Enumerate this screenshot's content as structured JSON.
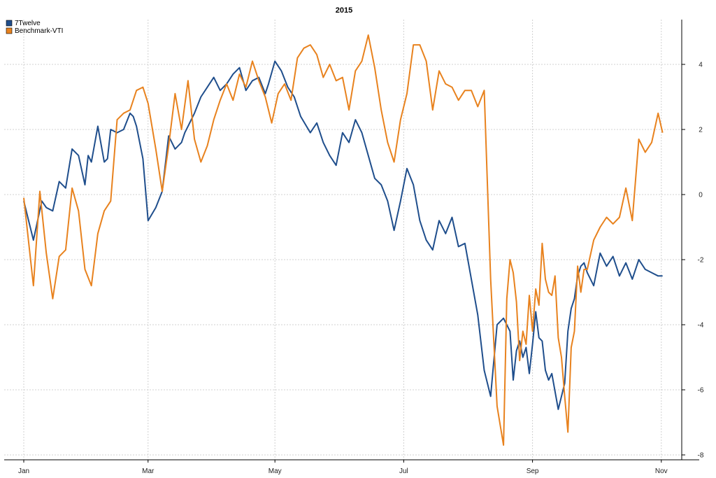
{
  "chart_data": {
    "type": "line",
    "title": "2015",
    "xlabel": "",
    "ylabel": "",
    "x_ticks": [
      "Jan",
      "Mar",
      "May",
      "Jul",
      "Sep",
      "Nov"
    ],
    "x_tick_positions": [
      0,
      1.93,
      3.9,
      5.9,
      7.9,
      9.9
    ],
    "xlim": [
      0,
      10.0
    ],
    "y_ticks": [
      4,
      2,
      0,
      -2,
      -4,
      -6,
      -8
    ],
    "ylim": [
      -8.2,
      5.4
    ],
    "grid": true,
    "legend_position": "top-left",
    "series": [
      {
        "name": "7Twelve",
        "color": "#1f4e8c",
        "x": [
          0,
          0.15,
          0.28,
          0.35,
          0.45,
          0.55,
          0.65,
          0.75,
          0.85,
          0.95,
          1.0,
          1.05,
          1.15,
          1.25,
          1.3,
          1.35,
          1.45,
          1.55,
          1.65,
          1.7,
          1.75,
          1.85,
          1.93,
          2.05,
          2.15,
          2.25,
          2.35,
          2.45,
          2.5,
          2.55,
          2.65,
          2.75,
          2.85,
          2.95,
          3.05,
          3.15,
          3.25,
          3.35,
          3.45,
          3.55,
          3.65,
          3.75,
          3.8,
          3.9,
          4.0,
          4.1,
          4.2,
          4.3,
          4.45,
          4.55,
          4.65,
          4.75,
          4.85,
          4.95,
          5.05,
          5.15,
          5.25,
          5.35,
          5.45,
          5.55,
          5.65,
          5.75,
          5.85,
          5.95,
          6.05,
          6.15,
          6.25,
          6.35,
          6.45,
          6.55,
          6.65,
          6.75,
          6.85,
          6.95,
          7.05,
          7.15,
          7.25,
          7.35,
          7.45,
          7.55,
          7.6,
          7.65,
          7.7,
          7.75,
          7.8,
          7.85,
          7.9,
          7.95,
          8.0,
          8.05,
          8.1,
          8.15,
          8.2,
          8.3,
          8.4,
          8.45,
          8.5,
          8.55,
          8.6,
          8.65,
          8.7,
          8.75,
          8.85,
          8.95,
          9.05,
          9.15,
          9.25,
          9.35,
          9.45,
          9.55,
          9.65,
          9.75,
          9.85,
          9.92
        ],
        "y": [
          -0.2,
          -1.4,
          -0.2,
          -0.4,
          -0.5,
          0.4,
          0.2,
          1.4,
          1.2,
          0.3,
          1.2,
          1.0,
          2.1,
          1.0,
          1.1,
          2.0,
          1.9,
          2.0,
          2.5,
          2.4,
          2.1,
          1.1,
          -0.8,
          -0.4,
          0.1,
          1.8,
          1.4,
          1.6,
          1.9,
          2.1,
          2.5,
          3.0,
          3.3,
          3.6,
          3.2,
          3.4,
          3.7,
          3.9,
          3.2,
          3.5,
          3.6,
          3.1,
          3.4,
          4.1,
          3.8,
          3.3,
          3.0,
          2.4,
          1.9,
          2.2,
          1.6,
          1.2,
          0.9,
          1.9,
          1.6,
          2.3,
          1.9,
          1.2,
          0.5,
          0.3,
          -0.2,
          -1.1,
          -0.2,
          0.8,
          0.3,
          -0.8,
          -1.4,
          -1.7,
          -0.8,
          -1.2,
          -0.7,
          -1.6,
          -1.5,
          -2.6,
          -3.7,
          -5.4,
          -6.2,
          -4.0,
          -3.8,
          -4.2,
          -5.7,
          -4.8,
          -4.5,
          -5.0,
          -4.7,
          -5.5,
          -4.6,
          -3.6,
          -4.4,
          -4.5,
          -5.4,
          -5.7,
          -5.5,
          -6.6,
          -5.8,
          -4.2,
          -3.5,
          -3.2,
          -2.5,
          -2.2,
          -2.1,
          -2.4,
          -2.8,
          -1.8,
          -2.2,
          -1.9,
          -2.5,
          -2.1,
          -2.6,
          -2.0,
          -2.3,
          -2.4,
          -2.5,
          -2.5
        ]
      },
      {
        "name": "Benchmark-VTI",
        "color": "#e8821e",
        "x": [
          0,
          0.15,
          0.25,
          0.35,
          0.45,
          0.55,
          0.65,
          0.75,
          0.85,
          0.95,
          1.05,
          1.15,
          1.25,
          1.35,
          1.45,
          1.55,
          1.65,
          1.75,
          1.85,
          1.93,
          2.05,
          2.15,
          2.25,
          2.35,
          2.45,
          2.55,
          2.65,
          2.75,
          2.85,
          2.95,
          3.05,
          3.15,
          3.25,
          3.35,
          3.45,
          3.55,
          3.65,
          3.75,
          3.85,
          3.95,
          4.05,
          4.15,
          4.25,
          4.35,
          4.45,
          4.55,
          4.65,
          4.75,
          4.85,
          4.95,
          5.05,
          5.15,
          5.25,
          5.35,
          5.45,
          5.55,
          5.65,
          5.75,
          5.85,
          5.95,
          6.05,
          6.15,
          6.25,
          6.35,
          6.45,
          6.55,
          6.65,
          6.75,
          6.85,
          6.95,
          7.05,
          7.15,
          7.25,
          7.35,
          7.45,
          7.5,
          7.55,
          7.6,
          7.65,
          7.7,
          7.75,
          7.8,
          7.85,
          7.9,
          7.95,
          8.0,
          8.05,
          8.1,
          8.15,
          8.2,
          8.25,
          8.3,
          8.35,
          8.4,
          8.45,
          8.5,
          8.55,
          8.6,
          8.65,
          8.7,
          8.75,
          8.85,
          8.95,
          9.05,
          9.15,
          9.25,
          9.35,
          9.45,
          9.55,
          9.65,
          9.75,
          9.85,
          9.92
        ],
        "y": [
          -0.1,
          -2.8,
          0.1,
          -1.8,
          -3.2,
          -1.9,
          -1.7,
          0.2,
          -0.5,
          -2.3,
          -2.8,
          -1.2,
          -0.5,
          -0.2,
          2.3,
          2.5,
          2.6,
          3.2,
          3.3,
          2.8,
          1.4,
          0.1,
          1.5,
          3.1,
          2.0,
          3.5,
          1.7,
          1.0,
          1.5,
          2.3,
          2.9,
          3.4,
          2.9,
          3.7,
          3.3,
          4.1,
          3.5,
          3.0,
          2.2,
          3.1,
          3.4,
          2.9,
          4.2,
          4.5,
          4.6,
          4.3,
          3.6,
          4.0,
          3.5,
          3.6,
          2.6,
          3.8,
          4.1,
          4.9,
          3.9,
          2.6,
          1.6,
          1.0,
          2.3,
          3.1,
          4.6,
          4.6,
          4.1,
          2.6,
          3.8,
          3.4,
          3.3,
          2.9,
          3.2,
          3.2,
          2.7,
          3.2,
          -2.6,
          -6.5,
          -7.7,
          -3.2,
          -2.0,
          -2.4,
          -3.3,
          -5.1,
          -4.2,
          -4.6,
          -3.1,
          -4.2,
          -2.9,
          -3.4,
          -1.5,
          -2.6,
          -3.0,
          -3.1,
          -2.5,
          -4.4,
          -5.0,
          -6.2,
          -7.3,
          -4.7,
          -4.2,
          -2.2,
          -3.0,
          -2.3,
          -2.3,
          -1.4,
          -1.0,
          -0.7,
          -0.9,
          -0.7,
          0.2,
          -0.8,
          1.7,
          1.3,
          1.6,
          2.5,
          1.9
        ]
      }
    ]
  }
}
